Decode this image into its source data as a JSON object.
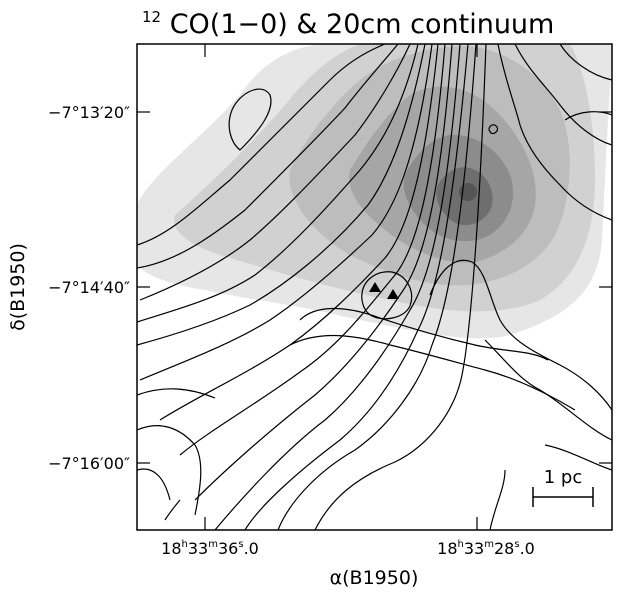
{
  "chart_data": {
    "type": "contour",
    "title": "12CO(1−0) & 20cm continuum",
    "title_parts": {
      "sup": "12",
      "main": "CO(1−0) & 20cm continuum"
    },
    "xlabel": "α(B1950)",
    "ylabel": "δ(B1950)",
    "x_ticks": [
      {
        "h": "18",
        "m": "33",
        "s": "36",
        "frac": ".0"
      },
      {
        "h": "18",
        "m": "33",
        "s": "28",
        "frac": ".0"
      }
    ],
    "y_ticks": [
      "−7°13′20″",
      "−7°14′40″",
      "−7°16′00″"
    ],
    "scalebar_label": "1 pc",
    "layers": [
      {
        "name": "CO contours",
        "style": "black lines"
      },
      {
        "name": "20cm continuum",
        "style": "grey shading"
      }
    ],
    "markers": {
      "symbol": "filled triangle",
      "count": 2
    }
  }
}
